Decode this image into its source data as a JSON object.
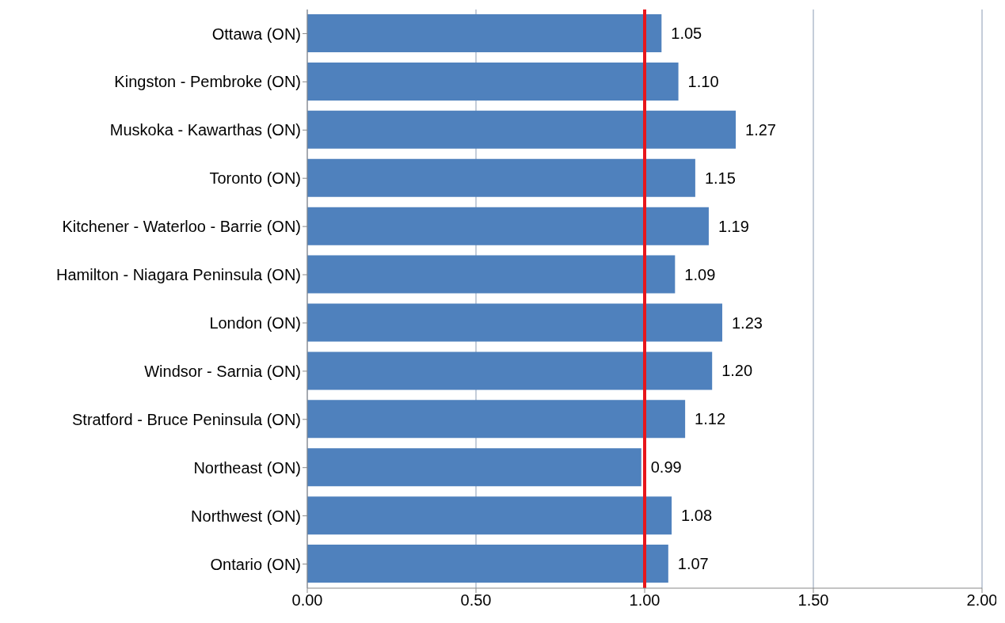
{
  "chart_data": {
    "type": "bar",
    "orientation": "horizontal",
    "categories": [
      "Ottawa (ON)",
      "Kingston - Pembroke (ON)",
      "Muskoka - Kawarthas (ON)",
      "Toronto (ON)",
      "Kitchener - Waterloo - Barrie (ON)",
      "Hamilton - Niagara Peninsula (ON)",
      "London (ON)",
      "Windsor - Sarnia (ON)",
      "Stratford - Bruce Peninsula (ON)",
      "Northeast (ON)",
      "Northwest (ON)",
      "Ontario (ON)"
    ],
    "values": [
      1.05,
      1.1,
      1.27,
      1.15,
      1.19,
      1.09,
      1.23,
      1.2,
      1.12,
      0.99,
      1.08,
      1.07
    ],
    "value_labels": [
      "1.05",
      "1.10",
      "1.27",
      "1.15",
      "1.19",
      "1.09",
      "1.23",
      "1.20",
      "1.12",
      "0.99",
      "1.08",
      "1.07"
    ],
    "color": "#4f81bd",
    "xlim": [
      0,
      2
    ],
    "xticks": [
      {
        "value": 0,
        "label": "0.00"
      },
      {
        "value": 0.5,
        "label": "0.50"
      },
      {
        "value": 1,
        "label": "1.00"
      },
      {
        "value": 1.5,
        "label": "1.50"
      },
      {
        "value": 2,
        "label": "2.00"
      }
    ],
    "grid": "x",
    "ref_lines": [
      {
        "axis": "x",
        "value": 1,
        "color": "#e8161b"
      }
    ]
  }
}
